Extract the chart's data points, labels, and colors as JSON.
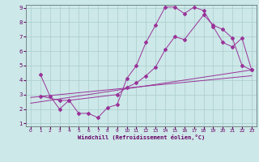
{
  "title": "",
  "xlabel": "Windchill (Refroidissement éolien,°C)",
  "ylabel": "",
  "background_color": "#cce8e8",
  "grid_color": "#aacccc",
  "line_color": "#993399",
  "xlim": [
    -0.5,
    23.5
  ],
  "ylim": [
    0.8,
    9.2
  ],
  "xticks": [
    0,
    1,
    2,
    3,
    4,
    5,
    6,
    7,
    8,
    9,
    10,
    11,
    12,
    13,
    14,
    15,
    16,
    17,
    18,
    19,
    20,
    21,
    22,
    23
  ],
  "yticks": [
    1,
    2,
    3,
    4,
    5,
    6,
    7,
    8,
    9
  ],
  "line1_x": [
    1,
    2,
    3,
    4,
    5,
    6,
    7,
    8,
    9,
    10,
    11,
    12,
    13,
    14,
    15,
    16,
    17,
    18,
    19,
    20,
    21,
    22,
    23
  ],
  "line1_y": [
    4.4,
    2.9,
    2.0,
    2.6,
    1.7,
    1.7,
    1.4,
    2.1,
    2.3,
    4.1,
    5.0,
    6.6,
    7.8,
    9.05,
    9.05,
    8.6,
    9.05,
    8.8,
    7.7,
    6.6,
    6.3,
    6.9,
    4.7
  ],
  "line2_x": [
    1,
    3,
    4,
    9,
    10,
    11,
    12,
    13,
    14,
    15,
    16,
    18,
    19,
    20,
    21,
    22,
    23
  ],
  "line2_y": [
    2.9,
    2.6,
    2.6,
    3.0,
    3.5,
    3.8,
    4.3,
    4.9,
    6.1,
    7.0,
    6.8,
    8.5,
    7.8,
    7.5,
    6.9,
    5.0,
    4.7
  ],
  "line3_x": [
    0,
    23
  ],
  "line3_y": [
    2.4,
    4.7
  ],
  "line4_x": [
    0,
    23
  ],
  "line4_y": [
    2.8,
    4.3
  ]
}
